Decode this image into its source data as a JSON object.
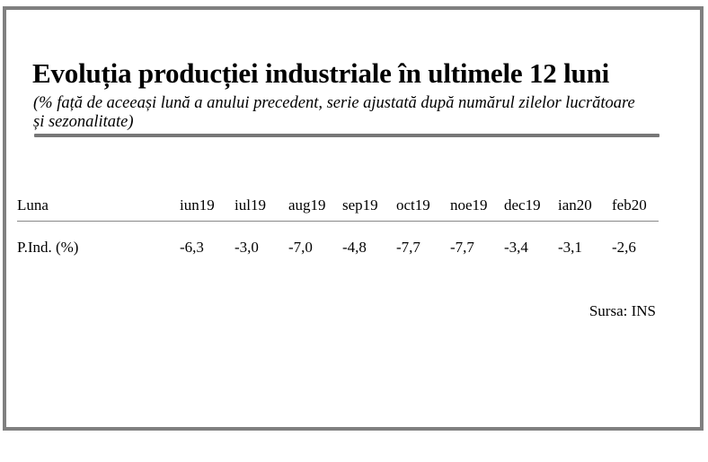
{
  "title": "Evoluția producției industriale în ultimele 12 luni",
  "subtitle": "(% față de aceeași lună a anului precedent, serie ajustată după numărul zilelor lucrătoare și sezonalitate)",
  "table": {
    "header_label": "Luna",
    "row_label": "P.Ind. (%)",
    "months": [
      "iun19",
      "iul19",
      "aug19",
      "sep19",
      "oct19",
      "noe19",
      "dec19",
      "ian20",
      "feb20"
    ],
    "values": [
      "-6,3",
      "-3,0",
      "-7,0",
      "-4,8",
      "-7,7",
      "-7,7",
      "-3,4",
      "-3,1",
      "-2,6"
    ]
  },
  "source": "Sursa: INS"
}
